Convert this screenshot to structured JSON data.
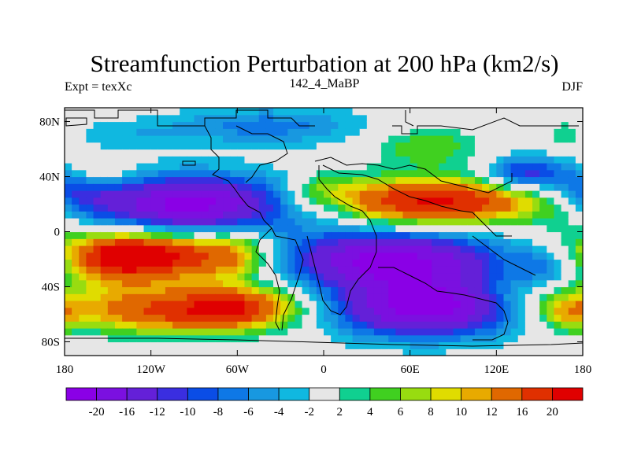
{
  "chart_data": {
    "type": "heatmap",
    "title": "Streamfunction Perturbation at 200 hPa (km2/s)",
    "left_label": "Expt = texXc",
    "center_label": "142_4_MaBP",
    "right_label": "DJF",
    "x_ticks": [
      "180",
      "120W",
      "60W",
      "0",
      "60E",
      "120E",
      "180"
    ],
    "x_tick_values": [
      -180,
      -120,
      -60,
      0,
      60,
      120,
      180
    ],
    "y_ticks": [
      "80N",
      "40N",
      "0",
      "40S",
      "80S"
    ],
    "y_tick_values": [
      80,
      40,
      0,
      -40,
      -80
    ],
    "xlim": [
      -180,
      180
    ],
    "ylim": [
      -90,
      90
    ],
    "colorbar": {
      "labels": [
        "-20",
        "-16",
        "-12",
        "-10",
        "-8",
        "-6",
        "-4",
        "-2",
        "2",
        "4",
        "6",
        "8",
        "10",
        "12",
        "16",
        "20"
      ],
      "colors": [
        "#8a00e6",
        "#7b10e0",
        "#6420d8",
        "#3a2ee0",
        "#0a4de6",
        "#0e78e6",
        "#1898e0",
        "#10b8e0",
        "#e6e6e6",
        "#10d090",
        "#40d020",
        "#98dc10",
        "#e0dc00",
        "#e8aa00",
        "#e06800",
        "#e03000",
        "#e00000"
      ]
    },
    "features": [
      {
        "lon": -90,
        "lat": 20,
        "value": -22,
        "slon": 55,
        "slat": 15
      },
      {
        "lon": -175,
        "lat": 30,
        "value": -8,
        "slon": 20,
        "slat": 12
      },
      {
        "lon": 5,
        "lat": 20,
        "value": -4,
        "slon": 12,
        "slat": 10
      },
      {
        "lon": 75,
        "lat": 22,
        "value": 21,
        "slon": 60,
        "slat": 12
      },
      {
        "lon": 0,
        "lat": 30,
        "value": 6,
        "slon": 15,
        "slat": 10
      },
      {
        "lon": -115,
        "lat": -17,
        "value": 22,
        "slon": 45,
        "slat": 12
      },
      {
        "lon": -145,
        "lat": -18,
        "value": 8,
        "slon": 20,
        "slat": 13
      },
      {
        "lon": -60,
        "lat": -15,
        "value": 6,
        "slon": 15,
        "slat": 15
      },
      {
        "lon": 45,
        "lat": -20,
        "value": -21,
        "slon": 55,
        "slat": 15
      },
      {
        "lon": 70,
        "lat": -55,
        "value": -22,
        "slon": 45,
        "slat": 15
      },
      {
        "lon": -110,
        "lat": -60,
        "value": 14,
        "slon": 45,
        "slat": 10
      },
      {
        "lon": -60,
        "lat": -55,
        "value": 13,
        "slon": 25,
        "slat": 10
      },
      {
        "lon": -120,
        "lat": -45,
        "value": 6,
        "slon": 60,
        "slat": 10
      },
      {
        "lon": -40,
        "lat": 77,
        "value": -7,
        "slon": 50,
        "slat": 10
      },
      {
        "lon": -140,
        "lat": 70,
        "value": -3,
        "slon": 30,
        "slat": 8
      },
      {
        "lon": 72,
        "lat": 62,
        "value": 6,
        "slon": 25,
        "slat": 10
      },
      {
        "lon": 140,
        "lat": 42,
        "value": -12,
        "slon": 20,
        "slat": 9
      },
      {
        "lon": -155,
        "lat": 43,
        "value": 5,
        "slon": 18,
        "slat": 7
      },
      {
        "lon": 170,
        "lat": 70,
        "value": 4,
        "slon": 12,
        "slat": 8
      },
      {
        "lon": 170,
        "lat": -58,
        "value": 10,
        "slon": 15,
        "slat": 10
      },
      {
        "lon": 155,
        "lat": -25,
        "value": -6,
        "slon": 15,
        "slat": 10
      },
      {
        "lon": 135,
        "lat": -50,
        "value": 3,
        "slon": 18,
        "slat": 10
      },
      {
        "lon": 170,
        "lat": 10,
        "value": 3,
        "slon": 15,
        "slat": 12
      },
      {
        "lon": -20,
        "lat": -55,
        "value": 3,
        "slon": 20,
        "slat": 12
      }
    ]
  }
}
